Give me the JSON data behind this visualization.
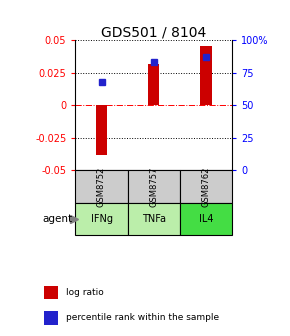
{
  "title": "GDS501 / 8104",
  "samples": [
    "GSM8752",
    "GSM8757",
    "GSM8762"
  ],
  "agents": [
    "IFNg",
    "TNFa",
    "IL4"
  ],
  "log_ratios": [
    -0.038,
    0.032,
    0.046
  ],
  "percentile_ranks_pct": [
    68,
    83,
    87
  ],
  "ylim_left": [
    -0.05,
    0.05
  ],
  "ylim_right": [
    0,
    100
  ],
  "yticks_left": [
    -0.05,
    -0.025,
    0,
    0.025,
    0.05
  ],
  "yticks_right": [
    0,
    25,
    50,
    75,
    100
  ],
  "ytick_labels_left": [
    "-0.05",
    "-0.025",
    "0",
    "0.025",
    "0.05"
  ],
  "ytick_labels_right": [
    "0",
    "25",
    "50",
    "75",
    "100%"
  ],
  "bar_color": "#cc0000",
  "dot_color": "#2222cc",
  "agent_colors": [
    "#bbeeaa",
    "#bbeeaa",
    "#44dd44"
  ],
  "sample_color": "#cccccc",
  "title_fontsize": 10,
  "tick_fontsize": 7,
  "legend_fontsize": 6.5,
  "agent_label": "agent"
}
